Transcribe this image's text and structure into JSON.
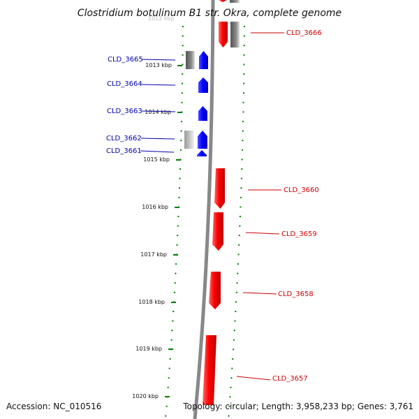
{
  "title": "Clostridium botulinum B1 str. Okra, complete genome",
  "footer": {
    "accession": "Accession: NC_010516",
    "topology": "Topology: circular; Length: 3,958,233 bp; Genes: 3,761"
  },
  "colors": {
    "forward_gene": "#ff0000",
    "reverse_gene": "#0000ff",
    "other_feature": "#777777",
    "backbone": "#888888",
    "ticks": "#008000",
    "forward_label": "#cc0000",
    "reverse_label": "#0000aa"
  },
  "ticks": [
    {
      "label": "1013 kbp"
    },
    {
      "label": "1014 kbp"
    },
    {
      "label": "1015 kbp"
    },
    {
      "label": "1016 kbp"
    },
    {
      "label": "1017 kbp"
    },
    {
      "label": "1018 kbp"
    },
    {
      "label": "1019 kbp"
    },
    {
      "label": "1020 kbp"
    }
  ],
  "genes": [
    {
      "label": "CLD_3666",
      "strand": "forward"
    },
    {
      "label": "CLD_3665",
      "strand": "reverse"
    },
    {
      "label": "CLD_3664",
      "strand": "reverse"
    },
    {
      "label": "CLD_3663",
      "strand": "reverse"
    },
    {
      "label": "CLD_3662",
      "strand": "reverse"
    },
    {
      "label": "CLD_3661",
      "strand": "reverse"
    },
    {
      "label": "CLD_3660",
      "strand": "forward"
    },
    {
      "label": "CLD_3659",
      "strand": "forward"
    },
    {
      "label": "CLD_3658",
      "strand": "forward"
    },
    {
      "label": "CLD_3657",
      "strand": "forward"
    }
  ]
}
